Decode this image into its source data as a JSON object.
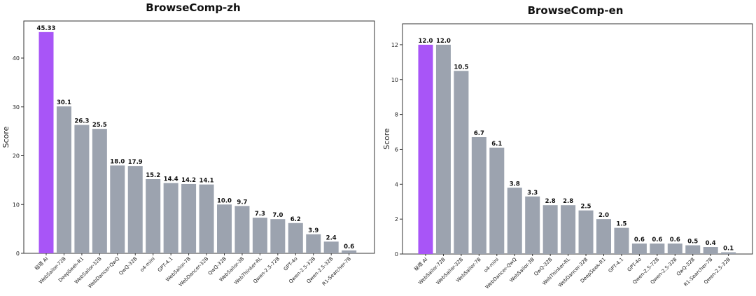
{
  "chart_data": [
    {
      "type": "bar",
      "title": "BrowseComp-zh",
      "ylabel": "Score",
      "xlabel": "",
      "ylim": [
        0,
        47.6
      ],
      "yticks": [
        0,
        10,
        20,
        30,
        40
      ],
      "grid": false,
      "categories": [
        "秘塔 AI",
        "WebSailor-72B",
        "DeepSeek-R1",
        "WebSailor-32B",
        "WebDancer-QwQ",
        "QwQ-32B",
        "o4-mini",
        "GPT-4.1",
        "WebSailor-7B",
        "WebDancer-32B",
        "QwQ-32B",
        "WebSailor-3B",
        "WebThinker-RL",
        "Qwen-2.5-72B",
        "GPT-4o",
        "Qwen-2.5-32B",
        "Qwen-2.5-32B",
        "R1-Searcher-7B"
      ],
      "values": [
        45.33,
        30.1,
        26.3,
        25.5,
        18.0,
        17.9,
        15.2,
        14.4,
        14.2,
        14.1,
        10.0,
        9.7,
        7.3,
        7.0,
        6.2,
        3.9,
        2.4,
        0.6
      ],
      "value_labels": [
        "45.33",
        "30.1",
        "26.3",
        "25.5",
        "18.0",
        "17.9",
        "15.2",
        "14.4",
        "14.2",
        "14.1",
        "10.0",
        "9.7",
        "7.3",
        "7.0",
        "6.2",
        "3.9",
        "2.4",
        "0.6"
      ],
      "colors": [
        "#a855f7",
        "#9ca3af",
        "#9ca3af",
        "#9ca3af",
        "#9ca3af",
        "#9ca3af",
        "#9ca3af",
        "#9ca3af",
        "#9ca3af",
        "#9ca3af",
        "#9ca3af",
        "#9ca3af",
        "#9ca3af",
        "#9ca3af",
        "#9ca3af",
        "#9ca3af",
        "#9ca3af",
        "#9ca3af"
      ]
    },
    {
      "type": "bar",
      "title": "BrowseComp-en",
      "ylabel": "Score",
      "xlabel": "",
      "ylim": [
        0,
        13.2
      ],
      "yticks": [
        0,
        2,
        4,
        6,
        8,
        10,
        12
      ],
      "grid": false,
      "categories": [
        "秘塔 AI",
        "WebSailor-72B",
        "WebSailor-32B",
        "WebSailor-7B",
        "o4-mini",
        "WebDancer-QwQ",
        "WebSailor-3B",
        "QwQ-32B",
        "WebThinker-RL",
        "WebDancer-32B",
        "DeepSeek-R1",
        "GPT-4.1",
        "GPT-4o",
        "Qwen-2.5-72B",
        "Qwen-2.5-32B",
        "QwQ-32B",
        "R1-Searcher-7B",
        "Qwen-2.5-32B"
      ],
      "values": [
        12.0,
        12.0,
        10.5,
        6.7,
        6.1,
        3.8,
        3.3,
        2.8,
        2.8,
        2.5,
        2.0,
        1.5,
        0.6,
        0.6,
        0.6,
        0.5,
        0.4,
        0.1
      ],
      "value_labels": [
        "12.0",
        "12.0",
        "10.5",
        "6.7",
        "6.1",
        "3.8",
        "3.3",
        "2.8",
        "2.8",
        "2.5",
        "2.0",
        "1.5",
        "0.6",
        "0.6",
        "0.6",
        "0.5",
        "0.4",
        "0.1"
      ],
      "colors": [
        "#a855f7",
        "#9ca3af",
        "#9ca3af",
        "#9ca3af",
        "#9ca3af",
        "#9ca3af",
        "#9ca3af",
        "#9ca3af",
        "#9ca3af",
        "#9ca3af",
        "#9ca3af",
        "#9ca3af",
        "#9ca3af",
        "#9ca3af",
        "#9ca3af",
        "#9ca3af",
        "#9ca3af",
        "#9ca3af"
      ]
    }
  ]
}
